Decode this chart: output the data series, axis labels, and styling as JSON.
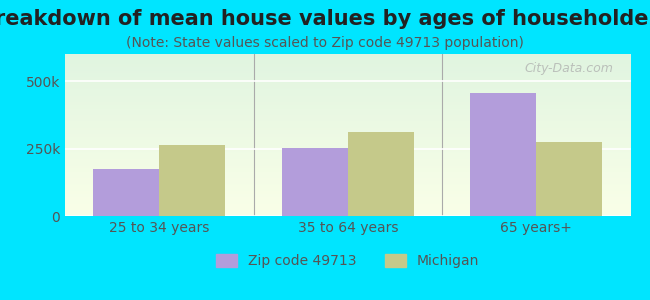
{
  "title": "Breakdown of mean house values by ages of householders",
  "subtitle": "(Note: State values scaled to Zip code 49713 population)",
  "categories": [
    "25 to 34 years",
    "35 to 64 years",
    "65 years+"
  ],
  "zip_values": [
    175000,
    253000,
    455000
  ],
  "michigan_values": [
    262000,
    310000,
    275000
  ],
  "zip_color": "#b39ddb",
  "michigan_color": "#c5c98a",
  "ylim": [
    0,
    600000
  ],
  "ytick_labels": [
    "0",
    "250k",
    "500k"
  ],
  "ytick_vals": [
    0,
    250000,
    500000
  ],
  "background_color": "#00e5ff",
  "zip_label": "Zip code 49713",
  "michigan_label": "Michigan",
  "watermark": "City-Data.com",
  "bar_width": 0.35,
  "title_fontsize": 15,
  "subtitle_fontsize": 10,
  "tick_fontsize": 10,
  "legend_fontsize": 10
}
